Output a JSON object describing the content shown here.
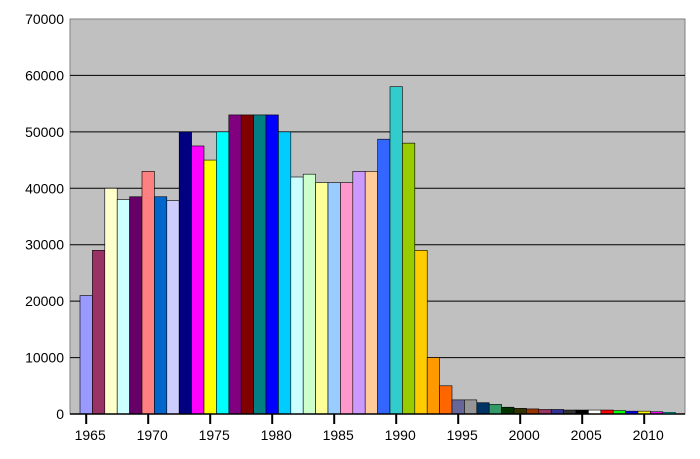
{
  "chart_data": {
    "type": "bar",
    "title": "",
    "xlabel": "",
    "ylabel": "",
    "ylim": [
      0,
      70000
    ],
    "yticks": [
      0,
      10000,
      20000,
      30000,
      40000,
      50000,
      60000,
      70000
    ],
    "xticks": [
      1965,
      1970,
      1975,
      1980,
      1985,
      1990,
      1995,
      2000,
      2005,
      2010
    ],
    "grid": true,
    "legend": "none",
    "background_color": "#c0c0c0",
    "x": [
      1965,
      1966,
      1967,
      1968,
      1969,
      1970,
      1971,
      1972,
      1973,
      1974,
      1975,
      1976,
      1977,
      1978,
      1979,
      1980,
      1981,
      1982,
      1983,
      1984,
      1985,
      1986,
      1987,
      1988,
      1989,
      1990,
      1991,
      1992,
      1993,
      1994,
      1995,
      1996,
      1997,
      1998,
      1999,
      2000,
      2001,
      2002,
      2003,
      2004,
      2005,
      2006,
      2007,
      2008,
      2009,
      2010,
      2011,
      2012
    ],
    "values": [
      21000,
      29000,
      40000,
      38000,
      38500,
      43000,
      38500,
      37800,
      50000,
      47500,
      45000,
      50000,
      53000,
      53000,
      53000,
      53000,
      50000,
      42000,
      42500,
      41000,
      41000,
      41000,
      43000,
      43000,
      48700,
      58000,
      48000,
      29000,
      10000,
      5000,
      2500,
      2500,
      2000,
      1700,
      1200,
      1000,
      900,
      800,
      800,
      700,
      700,
      700,
      700,
      600,
      500,
      500,
      400,
      300
    ],
    "colors": [
      "#9999ff",
      "#993366",
      "#ffffcc",
      "#ccffff",
      "#660066",
      "#ff8080",
      "#0066cc",
      "#ccccff",
      "#000080",
      "#ff00ff",
      "#ffff00",
      "#00ffff",
      "#800080",
      "#800000",
      "#008080",
      "#0000ff",
      "#00ccff",
      "#ccffff",
      "#ccffcc",
      "#ffff99",
      "#99ccff",
      "#ff99cc",
      "#cc99ff",
      "#ffcc99",
      "#3366ff",
      "#33cccc",
      "#99cc00",
      "#ffcc00",
      "#ff9900",
      "#ff6600",
      "#666699",
      "#969696",
      "#003366",
      "#339966",
      "#003300",
      "#333300",
      "#993300",
      "#993366",
      "#333399",
      "#333333",
      "#000000",
      "#ffffff",
      "#ff0000",
      "#00ff00",
      "#0000ff",
      "#ffff00",
      "#ff00ff",
      "#00ffff"
    ]
  }
}
